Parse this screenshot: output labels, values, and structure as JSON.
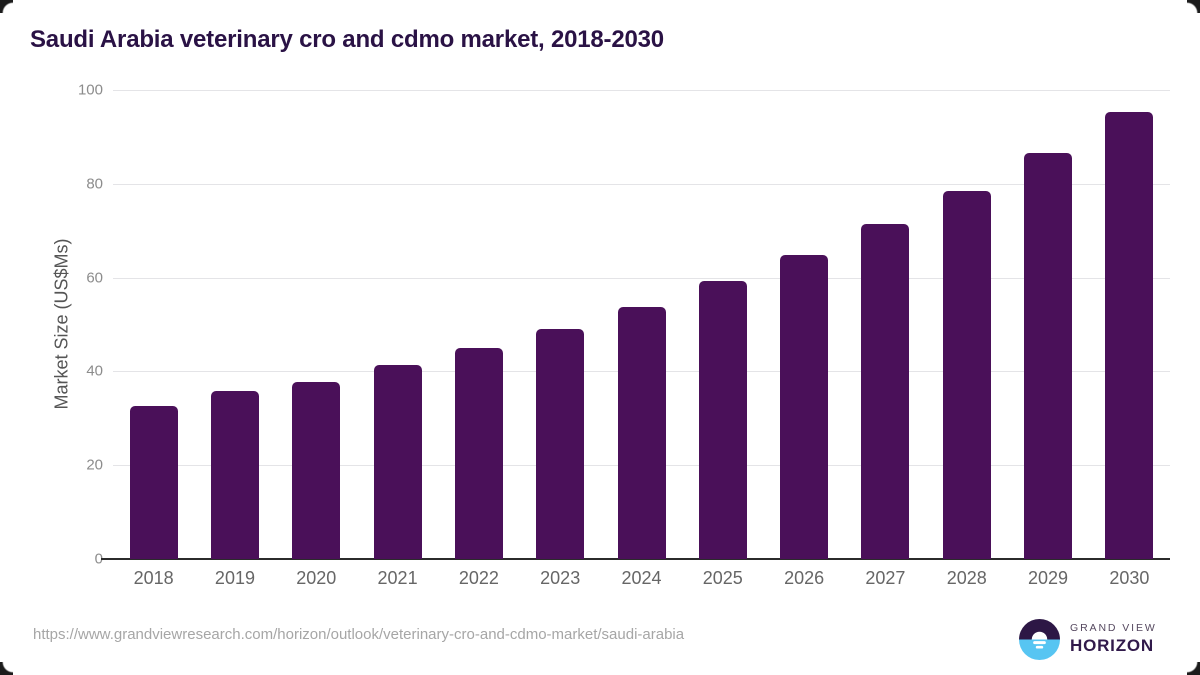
{
  "chart_data": {
    "type": "bar",
    "title": "Saudi Arabia veterinary cro and cdmo market, 2018-2030",
    "categories": [
      "2018",
      "2019",
      "2020",
      "2021",
      "2022",
      "2023",
      "2024",
      "2025",
      "2026",
      "2027",
      "2028",
      "2029",
      "2030"
    ],
    "values": [
      32.7,
      35.8,
      37.7,
      41.3,
      44.9,
      49.1,
      53.8,
      59.2,
      64.9,
      71.5,
      78.5,
      86.5,
      95.4
    ],
    "xlabel": "",
    "ylabel": "Market Size (US$Ms)",
    "ylim": [
      0,
      100
    ],
    "yticks": [
      0,
      20,
      40,
      60,
      80,
      100
    ],
    "grid": true,
    "legend": "none",
    "bar_color": "#4a1059"
  },
  "colors": {
    "title": "#2a1245",
    "gridline": "#e4e4e7",
    "axis_line": "#2b2b2b",
    "y_tick": "#8c8c8c",
    "x_tick": "#666666",
    "url_text": "#a6a6a6",
    "logo_dark": "#2d1745",
    "logo_blue": "#57c5f2"
  },
  "footer": {
    "source_url": "https://www.grandviewresearch.com/horizon/outlook/veterinary-cro-and-cdmo-market/saudi-arabia",
    "logo": {
      "line1": "GRAND VIEW",
      "line2": "HORIZON"
    }
  }
}
